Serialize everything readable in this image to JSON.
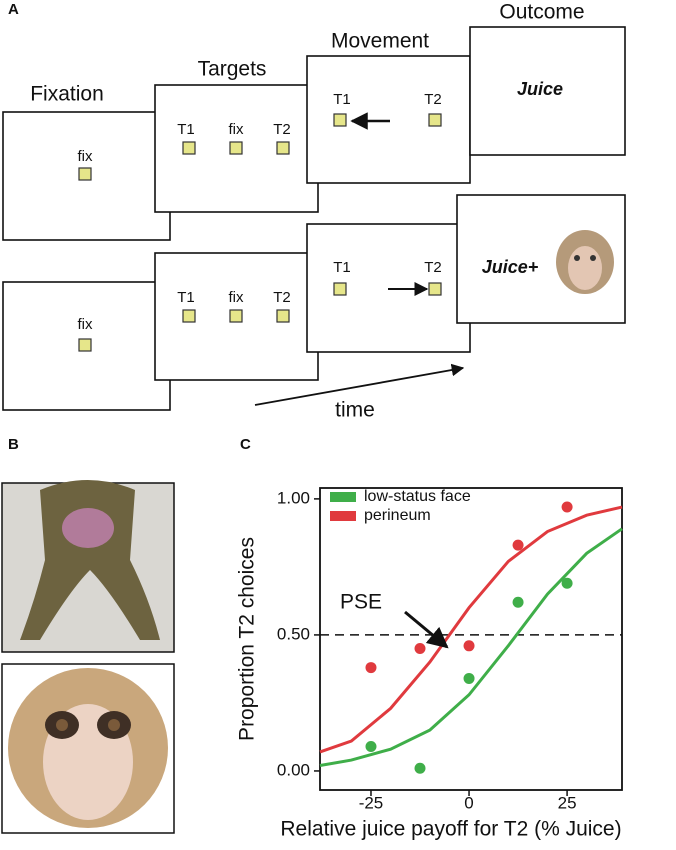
{
  "panel_a": {
    "label": "A",
    "stages": [
      "Fixation",
      "Targets",
      "Movement",
      "Outcome"
    ],
    "rows": [
      {
        "fixation": "fix",
        "targets": [
          "T1",
          "fix",
          "T2"
        ],
        "movement": [
          "T1",
          "T2"
        ],
        "outcome": "Juice"
      },
      {
        "fixation": "fix",
        "targets": [
          "T1",
          "fix",
          "T2"
        ],
        "movement": [
          "T1",
          "T2"
        ],
        "outcome": "Juice+"
      }
    ],
    "time": "time"
  },
  "panel_b": {
    "label": "B"
  },
  "panel_c": {
    "label": "C"
  },
  "chart_data": {
    "type": "scatter",
    "xlabel": "Relative juice payoff for T2 (% Juice)",
    "ylabel": "Proportion T2 choices",
    "xlim": [
      -38,
      39
    ],
    "ylim": [
      -0.07,
      1.04
    ],
    "xticks": [
      -25,
      0,
      25
    ],
    "yticks": [
      {
        "value": 0,
        "label": "0.00"
      },
      {
        "value": 0.5,
        "label": "0.50"
      },
      {
        "value": 1,
        "label": "1.00"
      }
    ],
    "reference_line": 0.5,
    "legend": "upper left",
    "annotation": "PSE",
    "series": [
      {
        "name": "low-status face",
        "color": "#3fae49",
        "x": [
          -25,
          -12.5,
          0,
          12.5,
          25
        ],
        "values": [
          0.09,
          0.01,
          0.34,
          0.62,
          0.69
        ],
        "fit_x": [
          -38,
          -30,
          -20,
          -10,
          0,
          10,
          20,
          30,
          39
        ],
        "fit_values": [
          0.02,
          0.04,
          0.08,
          0.15,
          0.28,
          0.46,
          0.65,
          0.8,
          0.89
        ]
      },
      {
        "name": "perineum",
        "color": "#e03a3e",
        "x": [
          -25,
          -12.5,
          0,
          12.5,
          25
        ],
        "values": [
          0.38,
          0.45,
          0.46,
          0.83,
          0.97
        ],
        "fit_x": [
          -38,
          -30,
          -20,
          -10,
          0,
          10,
          20,
          30,
          39
        ],
        "fit_values": [
          0.07,
          0.11,
          0.23,
          0.4,
          0.6,
          0.77,
          0.88,
          0.94,
          0.97
        ]
      }
    ]
  }
}
